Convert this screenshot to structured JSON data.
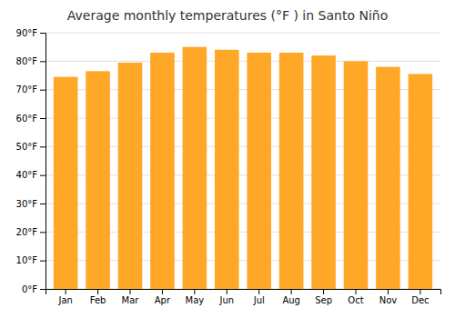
{
  "chart_data": {
    "type": "bar",
    "title": "Average monthly temperatures (°F ) in Santo Niño",
    "categories": [
      "Jan",
      "Feb",
      "Mar",
      "Apr",
      "May",
      "Jun",
      "Jul",
      "Aug",
      "Sep",
      "Oct",
      "Nov",
      "Dec"
    ],
    "values": [
      74.5,
      76.5,
      79.5,
      83.0,
      85.0,
      84.0,
      83.0,
      83.0,
      82.0,
      80.0,
      78.0,
      75.5
    ],
    "color": "#FFA726",
    "ylim": [
      0,
      90
    ],
    "yticks": [
      {
        "value": 0,
        "label": "0°F"
      },
      {
        "value": 10,
        "label": "10°F"
      },
      {
        "value": 20,
        "label": "20°F"
      },
      {
        "value": 30,
        "label": "30°F"
      },
      {
        "value": 40,
        "label": "40°F"
      },
      {
        "value": 50,
        "label": "50°F"
      },
      {
        "value": 60,
        "label": "60°F"
      },
      {
        "value": 70,
        "label": "70°F"
      },
      {
        "value": 80,
        "label": "80°F"
      },
      {
        "value": 90,
        "label": "90°F"
      }
    ],
    "grid": true
  }
}
